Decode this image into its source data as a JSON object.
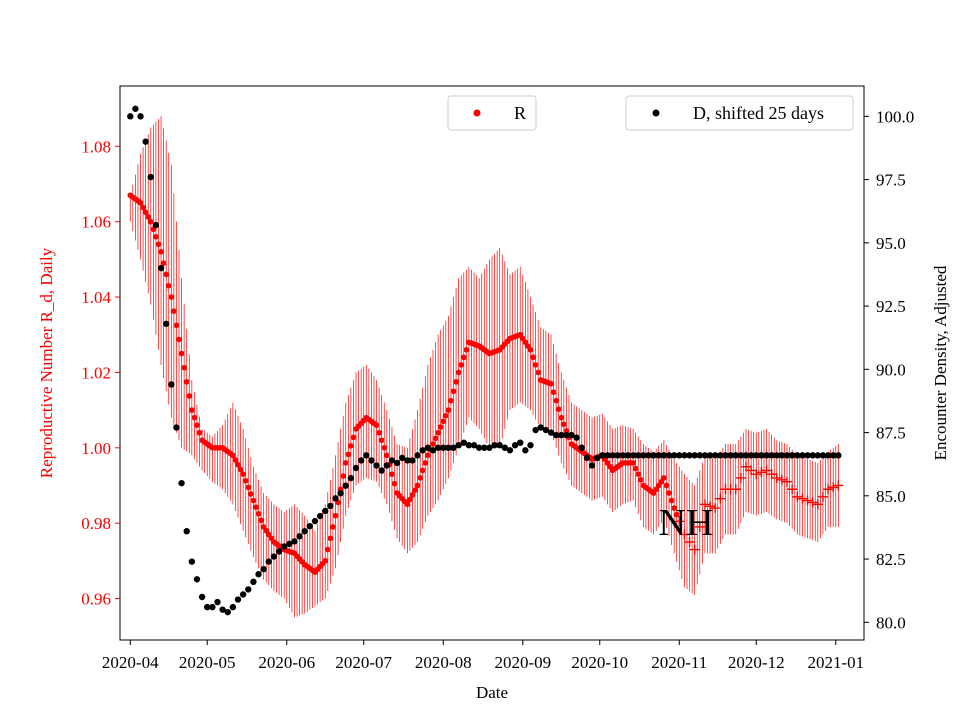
{
  "chart_data": {
    "type": "scatter",
    "annotation": "NH",
    "xlabel": "Date",
    "ylabel_left": "Reproductive Number R_d, Daily",
    "ylabel_right": "Encounter Density, Adjusted",
    "x_ticks": [
      "2020-04",
      "2020-05",
      "2020-06",
      "2020-07",
      "2020-08",
      "2020-09",
      "2020-10",
      "2020-11",
      "2020-12",
      "2021-01"
    ],
    "y_left_ticks": [
      "0.96",
      "0.98",
      "1.00",
      "1.02",
      "1.04",
      "1.06",
      "1.08"
    ],
    "y_right_ticks": [
      "80.0",
      "82.5",
      "85.0",
      "87.5",
      "90.0",
      "92.5",
      "95.0",
      "97.5",
      "100.0"
    ],
    "x_range_days": [
      -4,
      286
    ],
    "y_left_range": [
      0.949,
      1.096
    ],
    "y_right_range": [
      79.3,
      101.2
    ],
    "colors": {
      "r_series": "#ff0000",
      "d_series": "#000000",
      "axes": "#000000"
    },
    "legend_r": {
      "label": "R",
      "placement": "top-center"
    },
    "legend_d": {
      "label": "D, shifted 25 days",
      "placement": "top-right"
    },
    "series_r": {
      "name": "R",
      "marker_estimated": "dot",
      "marker_projected": "plus",
      "projected_from_day": 214,
      "x_days": [
        0,
        4,
        8,
        12,
        16,
        20,
        24,
        28,
        32,
        36,
        40,
        44,
        48,
        52,
        56,
        60,
        64,
        68,
        72,
        76,
        80,
        84,
        88,
        92,
        96,
        100,
        104,
        108,
        112,
        116,
        120,
        124,
        128,
        132,
        136,
        140,
        144,
        148,
        152,
        156,
        160,
        164,
        168,
        172,
        176,
        180,
        184,
        188,
        192,
        196,
        200,
        204,
        208,
        212,
        216,
        220,
        224,
        228,
        232,
        236,
        240,
        244,
        248,
        252,
        256,
        260,
        264,
        268,
        272,
        276
      ],
      "values": [
        1.067,
        1.065,
        1.06,
        1.052,
        1.04,
        1.025,
        1.01,
        1.002,
        1.0,
        1.0,
        0.998,
        0.993,
        0.986,
        0.979,
        0.975,
        0.973,
        0.972,
        0.969,
        0.967,
        0.97,
        0.982,
        0.996,
        1.005,
        1.008,
        1.006,
        0.998,
        0.988,
        0.985,
        0.99,
        0.998,
        1.004,
        1.01,
        1.02,
        1.028,
        1.027,
        1.025,
        1.026,
        1.029,
        1.03,
        1.026,
        1.018,
        1.017,
        1.008,
        1.001,
        0.999,
        0.997,
        0.998,
        0.994,
        0.996,
        0.996,
        0.99,
        0.988,
        0.992,
        0.984,
        0.977,
        0.973,
        0.985,
        0.984,
        0.989,
        0.989,
        0.995,
        0.993,
        0.994,
        0.992,
        0.991,
        0.987,
        0.986,
        0.985,
        0.989,
        0.99
      ],
      "err_upper": [
        1.067,
        1.078,
        1.085,
        1.088,
        1.075,
        1.045,
        1.018,
        1.005,
        1.003,
        1.006,
        1.012,
        1.005,
        0.995,
        0.988,
        0.985,
        0.983,
        0.985,
        0.982,
        0.978,
        0.985,
        0.998,
        1.012,
        1.02,
        1.022,
        1.018,
        1.01,
        1.001,
        1.0,
        1.01,
        1.022,
        1.03,
        1.035,
        1.045,
        1.048,
        1.045,
        1.05,
        1.053,
        1.046,
        1.048,
        1.04,
        1.032,
        1.03,
        1.02,
        1.012,
        1.01,
        1.008,
        1.009,
        1.005,
        1.006,
        1.005,
        1.001,
        0.999,
        1.002,
        0.997,
        0.993,
        0.99,
        0.998,
        0.997,
        1.001,
        1.001,
        1.005,
        1.004,
        1.005,
        1.002,
        1.001,
        0.998,
        0.997,
        0.996,
        0.999,
        1.001
      ],
      "err_lower": [
        1.06,
        1.05,
        1.038,
        1.022,
        1.008,
        1.0,
        0.998,
        0.994,
        0.991,
        0.989,
        0.985,
        0.978,
        0.971,
        0.965,
        0.962,
        0.96,
        0.955,
        0.956,
        0.958,
        0.96,
        0.968,
        0.982,
        0.99,
        0.992,
        0.991,
        0.985,
        0.976,
        0.972,
        0.975,
        0.982,
        0.986,
        0.992,
        1.0,
        1.008,
        1.005,
        1.0,
        1.0,
        1.01,
        1.012,
        1.01,
        1.005,
        1.004,
        0.996,
        0.99,
        0.988,
        0.986,
        0.987,
        0.983,
        0.985,
        0.986,
        0.979,
        0.977,
        0.981,
        0.972,
        0.963,
        0.961,
        0.972,
        0.972,
        0.977,
        0.977,
        0.983,
        0.982,
        0.983,
        0.981,
        0.98,
        0.977,
        0.976,
        0.975,
        0.979,
        0.979
      ]
    },
    "series_d": {
      "name": "D, shifted 25 days",
      "x_days": [
        0,
        2,
        4,
        6,
        8,
        10,
        12,
        14,
        16,
        18,
        20,
        22,
        24,
        26,
        28,
        30,
        32,
        34,
        36,
        38,
        40,
        42,
        44,
        46,
        48,
        50,
        52,
        54,
        56,
        58,
        60,
        62,
        64,
        66,
        68,
        70,
        72,
        74,
        76,
        78,
        80,
        82,
        84,
        86,
        88,
        90,
        92,
        94,
        96,
        98,
        100,
        102,
        104,
        106,
        108,
        110,
        112,
        114,
        116,
        118,
        120,
        122,
        124,
        126,
        128,
        130,
        132,
        134,
        136,
        138,
        140,
        142,
        144,
        146,
        148,
        150,
        152,
        154,
        156,
        158,
        160,
        162,
        164,
        166,
        168,
        170,
        172,
        174,
        176,
        178,
        180,
        182,
        184,
        186,
        188,
        190,
        192,
        194,
        196,
        198,
        200,
        202,
        204,
        206,
        208,
        210,
        212,
        214,
        216,
        218,
        220,
        222,
        224,
        226,
        228,
        230,
        232,
        234,
        236,
        238,
        240,
        242,
        244,
        246,
        248,
        250,
        252,
        254,
        256,
        258,
        260,
        262,
        264,
        266,
        268,
        270,
        272,
        274,
        276
      ],
      "values": [
        100.0,
        100.3,
        100.0,
        99.0,
        97.6,
        95.7,
        94.0,
        91.8,
        89.4,
        87.7,
        85.5,
        83.6,
        82.4,
        81.7,
        81.0,
        80.6,
        80.6,
        80.8,
        80.5,
        80.4,
        80.6,
        80.9,
        81.1,
        81.3,
        81.6,
        81.9,
        82.1,
        82.4,
        82.6,
        82.8,
        83.0,
        83.1,
        83.2,
        83.4,
        83.6,
        83.8,
        84.0,
        84.2,
        84.4,
        84.6,
        84.9,
        85.1,
        85.4,
        85.7,
        86.1,
        86.4,
        86.6,
        86.4,
        86.2,
        86.0,
        86.2,
        86.4,
        86.3,
        86.5,
        86.4,
        86.4,
        86.6,
        86.8,
        86.9,
        86.8,
        86.9,
        86.9,
        86.9,
        86.9,
        87.0,
        87.1,
        87.0,
        87.0,
        86.9,
        86.9,
        86.9,
        87.0,
        87.0,
        86.9,
        86.8,
        87.0,
        87.1,
        86.8,
        87.0,
        87.6,
        87.7,
        87.6,
        87.5,
        87.4,
        87.4,
        87.4,
        87.4,
        87.3,
        86.9,
        86.5,
        86.2,
        86.5,
        86.6,
        86.6,
        86.6,
        86.6,
        86.6,
        86.6,
        86.6,
        86.6,
        86.6,
        86.6,
        86.6,
        86.6,
        86.6,
        86.6,
        86.6,
        86.6,
        86.6,
        86.6,
        86.6,
        86.6,
        86.6,
        86.6,
        86.6,
        86.6,
        86.6,
        86.6,
        86.6,
        86.6,
        86.6,
        86.6,
        86.6,
        86.6,
        86.6,
        86.6,
        86.6,
        86.6,
        86.6,
        86.6,
        86.6,
        86.6,
        86.6,
        86.6,
        86.6,
        86.6,
        86.6,
        86.6,
        86.6
      ]
    }
  }
}
